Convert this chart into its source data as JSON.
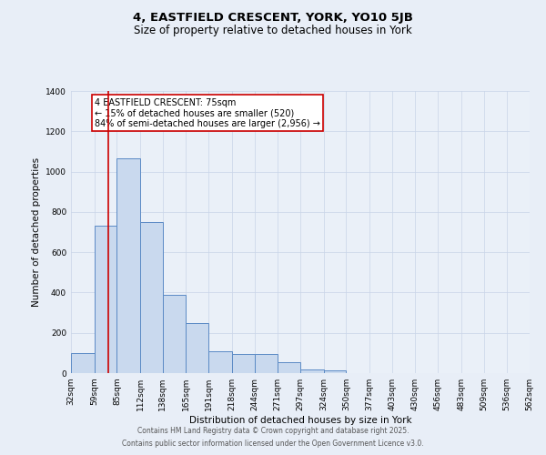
{
  "title_line1": "4, EASTFIELD CRESCENT, YORK, YO10 5JB",
  "title_line2": "Size of property relative to detached houses in York",
  "xlabel": "Distribution of detached houses by size in York",
  "ylabel": "Number of detached properties",
  "bin_edges": [
    32,
    59,
    85,
    112,
    138,
    165,
    191,
    218,
    244,
    271,
    297,
    324,
    350,
    377,
    403,
    430,
    456,
    483,
    509,
    536,
    562
  ],
  "bar_heights": [
    100,
    730,
    1065,
    748,
    390,
    248,
    107,
    95,
    95,
    55,
    20,
    15,
    0,
    0,
    0,
    0,
    0,
    0,
    0,
    0
  ],
  "bar_color": "#c9d9ee",
  "bar_edgecolor": "#5b8ac5",
  "property_size": 75,
  "property_line_color": "#cc0000",
  "annotation_text": "4 EASTFIELD CRESCENT: 75sqm\n← 15% of detached houses are smaller (520)\n84% of semi-detached houses are larger (2,956) →",
  "annotation_box_color": "#cc0000",
  "ylim": [
    0,
    1400
  ],
  "yticks": [
    0,
    200,
    400,
    600,
    800,
    1000,
    1200,
    1400
  ],
  "bg_color": "#e8eef7",
  "plot_bg_color": "#eaf0f8",
  "grid_color": "#c8d4e8",
  "footer_line1": "Contains HM Land Registry data © Crown copyright and database right 2025.",
  "footer_line2": "Contains public sector information licensed under the Open Government Licence v3.0.",
  "title_fontsize": 9.5,
  "subtitle_fontsize": 8.5,
  "annotation_fontsize": 7,
  "axis_label_fontsize": 7.5,
  "tick_fontsize": 6.5,
  "footer_fontsize": 5.5
}
